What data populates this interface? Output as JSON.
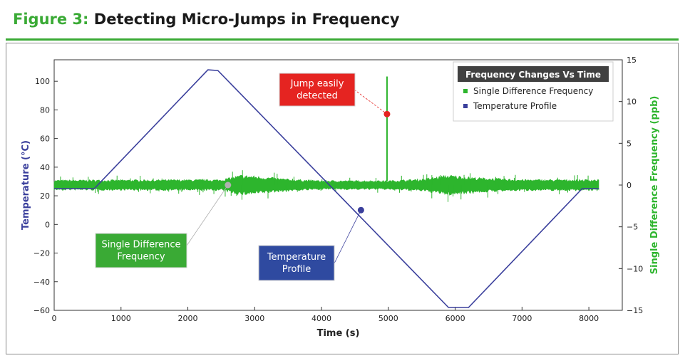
{
  "figure": {
    "number": "Figure 3:",
    "title": "Detecting Micro-Jumps in Frequency"
  },
  "colors": {
    "accent": "#3aaa35",
    "frequency": "#2db52d",
    "temperature": "#3a3f9c",
    "callout_red": "#e52421",
    "callout_green": "#3aaa35",
    "callout_blue": "#2f4aa0",
    "legend_title_bg": "#404040"
  },
  "chart_data": {
    "type": "line",
    "title": "",
    "xlabel": "Time (s)",
    "ylabel": "Temperature (°C)",
    "y2label": "Single Difference Frequency (ppb)",
    "xlim": [
      0,
      8500
    ],
    "ylim": [
      -60,
      115
    ],
    "y2lim": [
      -15,
      15
    ],
    "x_ticks": [
      "0",
      "1000",
      "2000",
      "3000",
      "4000",
      "5000",
      "6000",
      "7000",
      "8000"
    ],
    "y_ticks": [
      "−60",
      "−40",
      "−20",
      "0",
      "20",
      "40",
      "60",
      "80",
      "100"
    ],
    "y2_ticks": [
      "−15",
      "−10",
      "−5",
      "0",
      "5",
      "10",
      "15"
    ],
    "grid": false,
    "legend": {
      "title": "Frequency Changes Vs Time",
      "placement": "top-right"
    },
    "series": [
      {
        "name": "Temperature Profile",
        "axis": "left",
        "x": [
          0,
          600,
          2300,
          2450,
          5900,
          6200,
          7900,
          8150
        ],
        "y": [
          25,
          25,
          108,
          107.5,
          -58,
          -58,
          25,
          25
        ]
      },
      {
        "name": "Single Difference Frequency",
        "axis": "right",
        "x_range": [
          0,
          8150
        ],
        "envelope_x": [
          0,
          2500,
          2800,
          3000,
          3500,
          4000,
          5000,
          5500,
          5900,
          6300,
          7000,
          7500,
          8150
        ],
        "envelope_halfwidth_ppb": [
          0.5,
          0.55,
          1.0,
          0.9,
          0.6,
          0.45,
          0.45,
          0.6,
          1.0,
          0.75,
          0.55,
          0.55,
          0.55
        ],
        "jump": {
          "x": 4980,
          "y_ppb": 13,
          "baseline_ppb": 0.5
        }
      }
    ],
    "markers": [
      {
        "label": "Jump easily\ndetected",
        "x": 4980,
        "y_ppb": 8.5,
        "color": "#e52421"
      },
      {
        "label": "Single Difference\nFrequency",
        "x": 2600,
        "y_ppb": 0,
        "color": "#b0b0b0"
      },
      {
        "label": "Temperature\nProfile",
        "x": 4590,
        "y_ppb": -3,
        "color": "#3a3f9c"
      }
    ],
    "annotations": [
      {
        "text": "Jump easily detected"
      },
      {
        "text": "Single Difference Frequency"
      },
      {
        "text": "Temperature Profile"
      }
    ]
  }
}
